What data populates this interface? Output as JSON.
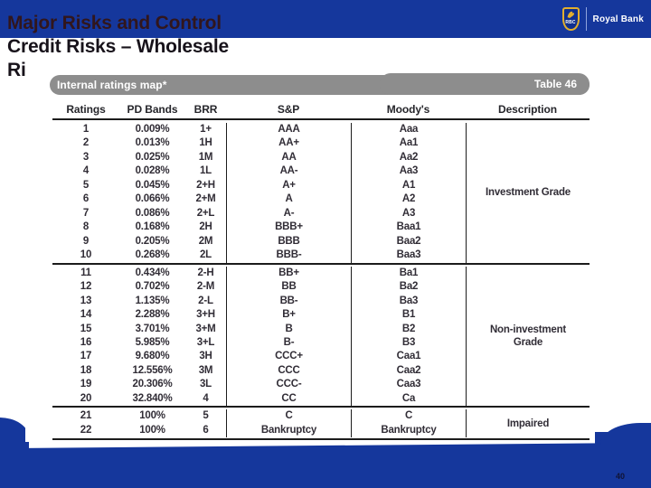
{
  "slide": {
    "title_lines": {
      "line1": "Major Risks and Control",
      "line2": "Credit Risks – Wholesale",
      "line3": "Ri"
    },
    "page_number": "40"
  },
  "logo": {
    "brand": "Royal Bank",
    "shield_text": "RBC"
  },
  "colors": {
    "banner_blue": "#15379c",
    "bar_gray": "#8d8d8d",
    "title_dark_maroon": "#31161c",
    "shield_gold": "#e2af2e"
  },
  "table": {
    "bar_title": "Internal ratings map*",
    "bar_tag": "Table 46",
    "headers": [
      "Ratings",
      "PD Bands",
      "BRR",
      "S&P",
      "Moody's",
      "Description"
    ],
    "sections": [
      {
        "description": "Investment Grade",
        "rows": [
          [
            "1",
            "0.009%",
            "1+",
            "AAA",
            "Aaa"
          ],
          [
            "2",
            "0.013%",
            "1H",
            "AA+",
            "Aa1"
          ],
          [
            "3",
            "0.025%",
            "1M",
            "AA",
            "Aa2"
          ],
          [
            "4",
            "0.028%",
            "1L",
            "AA-",
            "Aa3"
          ],
          [
            "5",
            "0.045%",
            "2+H",
            "A+",
            "A1"
          ],
          [
            "6",
            "0.066%",
            "2+M",
            "A",
            "A2"
          ],
          [
            "7",
            "0.086%",
            "2+L",
            "A-",
            "A3"
          ],
          [
            "8",
            "0.168%",
            "2H",
            "BBB+",
            "Baa1"
          ],
          [
            "9",
            "0.205%",
            "2M",
            "BBB",
            "Baa2"
          ],
          [
            "10",
            "0.268%",
            "2L",
            "BBB-",
            "Baa3"
          ]
        ]
      },
      {
        "description": "Non-investment Grade",
        "rows": [
          [
            "11",
            "0.434%",
            "2-H",
            "BB+",
            "Ba1"
          ],
          [
            "12",
            "0.702%",
            "2-M",
            "BB",
            "Ba2"
          ],
          [
            "13",
            "1.135%",
            "2-L",
            "BB-",
            "Ba3"
          ],
          [
            "14",
            "2.288%",
            "3+H",
            "B+",
            "B1"
          ],
          [
            "15",
            "3.701%",
            "3+M",
            "B",
            "B2"
          ],
          [
            "16",
            "5.985%",
            "3+L",
            "B-",
            "B3"
          ],
          [
            "17",
            "9.680%",
            "3H",
            "CCC+",
            "Caa1"
          ],
          [
            "18",
            "12.556%",
            "3M",
            "CCC",
            "Caa2"
          ],
          [
            "19",
            "20.306%",
            "3L",
            "CCC-",
            "Caa3"
          ],
          [
            "20",
            "32.840%",
            "4",
            "CC",
            "Ca"
          ]
        ]
      },
      {
        "description": "Impaired",
        "rows": [
          [
            "21",
            "100%",
            "5",
            "C",
            "C"
          ],
          [
            "22",
            "100%",
            "6",
            "Bankruptcy",
            "Bankruptcy"
          ]
        ]
      }
    ]
  }
}
